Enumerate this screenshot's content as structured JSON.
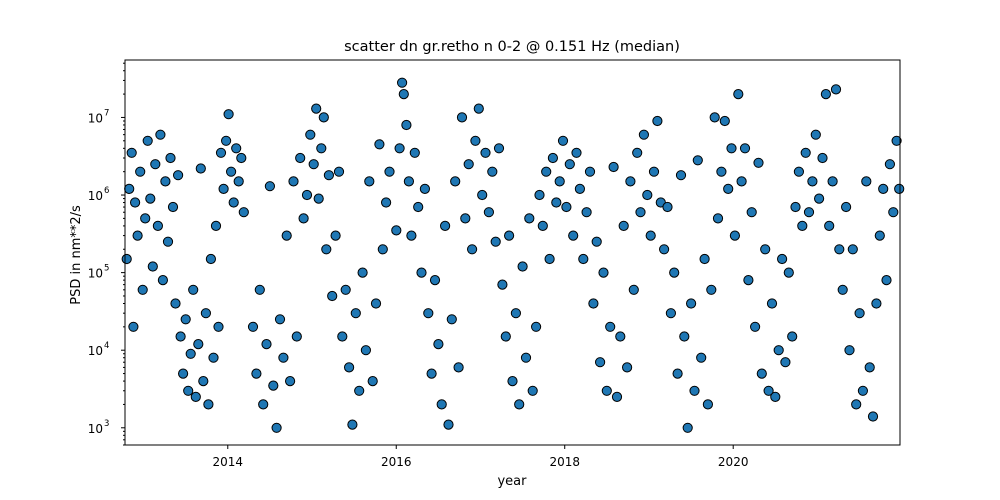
{
  "chart_data": {
    "type": "scatter",
    "title": "scatter dn gr.retho n 0-2 @ 0.151 Hz (median)",
    "xlabel": "year",
    "ylabel": "PSD in nm**2/s",
    "xlim": [
      2012.78,
      2021.98
    ],
    "ylim": [
      600,
      55000000
    ],
    "y_scale": "log",
    "grid": false,
    "marker_color": "#1f77b4",
    "marker_edge_color": "#000000",
    "x_ticks": [
      {
        "value": 2014,
        "label": "2014"
      },
      {
        "value": 2016,
        "label": "2016"
      },
      {
        "value": 2018,
        "label": "2018"
      },
      {
        "value": 2020,
        "label": "2020"
      }
    ],
    "y_ticks": [
      {
        "value": 1000,
        "base": "10",
        "exp": "3"
      },
      {
        "value": 10000,
        "base": "10",
        "exp": "4"
      },
      {
        "value": 100000,
        "base": "10",
        "exp": "5"
      },
      {
        "value": 1000000,
        "base": "10",
        "exp": "6"
      },
      {
        "value": 10000000,
        "base": "10",
        "exp": "7"
      }
    ],
    "points": [
      [
        2012.8,
        150000
      ],
      [
        2012.83,
        1200000
      ],
      [
        2012.86,
        3500000
      ],
      [
        2012.88,
        20000
      ],
      [
        2012.9,
        800000
      ],
      [
        2012.93,
        300000
      ],
      [
        2012.96,
        2000000
      ],
      [
        2012.99,
        60000
      ],
      [
        2013.02,
        500000
      ],
      [
        2013.05,
        5000000
      ],
      [
        2013.08,
        900000
      ],
      [
        2013.11,
        120000
      ],
      [
        2013.14,
        2500000
      ],
      [
        2013.17,
        400000
      ],
      [
        2013.2,
        6000000
      ],
      [
        2013.23,
        80000
      ],
      [
        2013.26,
        1500000
      ],
      [
        2013.29,
        250000
      ],
      [
        2013.32,
        3000000
      ],
      [
        2013.35,
        700000
      ],
      [
        2013.38,
        40000
      ],
      [
        2013.41,
        1800000
      ],
      [
        2013.44,
        15000
      ],
      [
        2013.47,
        5000
      ],
      [
        2013.5,
        25000
      ],
      [
        2013.53,
        3000
      ],
      [
        2013.56,
        9000
      ],
      [
        2013.59,
        60000
      ],
      [
        2013.62,
        2500
      ],
      [
        2013.65,
        12000
      ],
      [
        2013.68,
        2200000
      ],
      [
        2013.71,
        4000
      ],
      [
        2013.74,
        30000
      ],
      [
        2013.77,
        2000
      ],
      [
        2013.8,
        150000
      ],
      [
        2013.83,
        8000
      ],
      [
        2013.86,
        400000
      ],
      [
        2013.89,
        20000
      ],
      [
        2013.92,
        3500000
      ],
      [
        2013.95,
        1200000
      ],
      [
        2013.98,
        5000000
      ],
      [
        2014.01,
        11000000
      ],
      [
        2014.04,
        2000000
      ],
      [
        2014.07,
        800000
      ],
      [
        2014.1,
        4000000
      ],
      [
        2014.13,
        1500000
      ],
      [
        2014.16,
        3000000
      ],
      [
        2014.19,
        600000
      ],
      [
        2014.3,
        20000
      ],
      [
        2014.34,
        5000
      ],
      [
        2014.38,
        60000
      ],
      [
        2014.42,
        2000
      ],
      [
        2014.46,
        12000
      ],
      [
        2014.5,
        1300000
      ],
      [
        2014.54,
        3500
      ],
      [
        2014.58,
        1000
      ],
      [
        2014.62,
        25000
      ],
      [
        2014.66,
        8000
      ],
      [
        2014.7,
        300000
      ],
      [
        2014.74,
        4000
      ],
      [
        2014.78,
        1500000
      ],
      [
        2014.82,
        15000
      ],
      [
        2014.86,
        3000000
      ],
      [
        2014.9,
        500000
      ],
      [
        2014.94,
        1000000
      ],
      [
        2014.98,
        6000000
      ],
      [
        2015.02,
        2500000
      ],
      [
        2015.05,
        13000000
      ],
      [
        2015.08,
        900000
      ],
      [
        2015.11,
        4000000
      ],
      [
        2015.14,
        10000000
      ],
      [
        2015.17,
        200000
      ],
      [
        2015.2,
        1800000
      ],
      [
        2015.24,
        50000
      ],
      [
        2015.28,
        300000
      ],
      [
        2015.32,
        2000000
      ],
      [
        2015.36,
        15000
      ],
      [
        2015.4,
        60000
      ],
      [
        2015.44,
        6000
      ],
      [
        2015.48,
        1100
      ],
      [
        2015.52,
        30000
      ],
      [
        2015.56,
        3000
      ],
      [
        2015.6,
        100000
      ],
      [
        2015.64,
        10000
      ],
      [
        2015.68,
        1500000
      ],
      [
        2015.72,
        4000
      ],
      [
        2015.76,
        40000
      ],
      [
        2015.8,
        4500000
      ],
      [
        2015.84,
        200000
      ],
      [
        2015.88,
        800000
      ],
      [
        2015.92,
        2000000
      ],
      [
        2016.0,
        350000
      ],
      [
        2016.04,
        4000000
      ],
      [
        2016.07,
        28000000
      ],
      [
        2016.09,
        20000000
      ],
      [
        2016.12,
        8000000
      ],
      [
        2016.15,
        1500000
      ],
      [
        2016.18,
        300000
      ],
      [
        2016.22,
        3500000
      ],
      [
        2016.26,
        700000
      ],
      [
        2016.3,
        100000
      ],
      [
        2016.34,
        1200000
      ],
      [
        2016.38,
        30000
      ],
      [
        2016.42,
        5000
      ],
      [
        2016.46,
        80000
      ],
      [
        2016.5,
        12000
      ],
      [
        2016.54,
        2000
      ],
      [
        2016.58,
        400000
      ],
      [
        2016.62,
        1100
      ],
      [
        2016.66,
        25000
      ],
      [
        2016.7,
        1500000
      ],
      [
        2016.74,
        6000
      ],
      [
        2016.78,
        10000000
      ],
      [
        2016.82,
        500000
      ],
      [
        2016.86,
        2500000
      ],
      [
        2016.9,
        200000
      ],
      [
        2016.94,
        5000000
      ],
      [
        2016.98,
        13000000
      ],
      [
        2017.02,
        1000000
      ],
      [
        2017.06,
        3500000
      ],
      [
        2017.1,
        600000
      ],
      [
        2017.14,
        2000000
      ],
      [
        2017.18,
        250000
      ],
      [
        2017.22,
        4000000
      ],
      [
        2017.26,
        70000
      ],
      [
        2017.3,
        15000
      ],
      [
        2017.34,
        300000
      ],
      [
        2017.38,
        4000
      ],
      [
        2017.42,
        30000
      ],
      [
        2017.46,
        2000
      ],
      [
        2017.5,
        120000
      ],
      [
        2017.54,
        8000
      ],
      [
        2017.58,
        500000
      ],
      [
        2017.62,
        3000
      ],
      [
        2017.66,
        20000
      ],
      [
        2017.7,
        1000000
      ],
      [
        2017.74,
        400000
      ],
      [
        2017.78,
        2000000
      ],
      [
        2017.82,
        150000
      ],
      [
        2017.86,
        3000000
      ],
      [
        2017.9,
        800000
      ],
      [
        2017.94,
        1500000
      ],
      [
        2017.98,
        5000000
      ],
      [
        2018.02,
        700000
      ],
      [
        2018.06,
        2500000
      ],
      [
        2018.1,
        300000
      ],
      [
        2018.14,
        3500000
      ],
      [
        2018.18,
        1200000
      ],
      [
        2018.22,
        150000
      ],
      [
        2018.26,
        600000
      ],
      [
        2018.3,
        2000000
      ],
      [
        2018.34,
        40000
      ],
      [
        2018.38,
        250000
      ],
      [
        2018.42,
        7000
      ],
      [
        2018.46,
        100000
      ],
      [
        2018.5,
        3000
      ],
      [
        2018.54,
        20000
      ],
      [
        2018.58,
        2300000
      ],
      [
        2018.62,
        2500
      ],
      [
        2018.66,
        15000
      ],
      [
        2018.7,
        400000
      ],
      [
        2018.74,
        6000
      ],
      [
        2018.78,
        1500000
      ],
      [
        2018.82,
        60000
      ],
      [
        2018.86,
        3500000
      ],
      [
        2018.9,
        600000
      ],
      [
        2018.94,
        6000000
      ],
      [
        2018.98,
        1000000
      ],
      [
        2019.02,
        300000
      ],
      [
        2019.06,
        2000000
      ],
      [
        2019.1,
        9000000
      ],
      [
        2019.14,
        800000
      ],
      [
        2019.18,
        200000
      ],
      [
        2019.22,
        700000
      ],
      [
        2019.26,
        30000
      ],
      [
        2019.3,
        100000
      ],
      [
        2019.34,
        5000
      ],
      [
        2019.38,
        1800000
      ],
      [
        2019.42,
        15000
      ],
      [
        2019.46,
        1000
      ],
      [
        2019.5,
        40000
      ],
      [
        2019.54,
        3000
      ],
      [
        2019.58,
        2800000
      ],
      [
        2019.62,
        8000
      ],
      [
        2019.66,
        150000
      ],
      [
        2019.7,
        2000
      ],
      [
        2019.74,
        60000
      ],
      [
        2019.78,
        10000000
      ],
      [
        2019.82,
        500000
      ],
      [
        2019.86,
        2000000
      ],
      [
        2019.9,
        9000000
      ],
      [
        2019.94,
        1200000
      ],
      [
        2019.98,
        4000000
      ],
      [
        2020.02,
        300000
      ],
      [
        2020.06,
        20000000
      ],
      [
        2020.1,
        1500000
      ],
      [
        2020.14,
        4000000
      ],
      [
        2020.18,
        80000
      ],
      [
        2020.22,
        600000
      ],
      [
        2020.26,
        20000
      ],
      [
        2020.3,
        2600000
      ],
      [
        2020.34,
        5000
      ],
      [
        2020.38,
        200000
      ],
      [
        2020.42,
        3000
      ],
      [
        2020.46,
        40000
      ],
      [
        2020.5,
        2500
      ],
      [
        2020.54,
        10000
      ],
      [
        2020.58,
        150000
      ],
      [
        2020.62,
        7000
      ],
      [
        2020.66,
        100000
      ],
      [
        2020.7,
        15000
      ],
      [
        2020.74,
        700000
      ],
      [
        2020.78,
        2000000
      ],
      [
        2020.82,
        400000
      ],
      [
        2020.86,
        3500000
      ],
      [
        2020.9,
        600000
      ],
      [
        2020.94,
        1500000
      ],
      [
        2020.98,
        6000000
      ],
      [
        2021.02,
        900000
      ],
      [
        2021.06,
        3000000
      ],
      [
        2021.1,
        20000000
      ],
      [
        2021.14,
        400000
      ],
      [
        2021.18,
        1500000
      ],
      [
        2021.22,
        23000000
      ],
      [
        2021.26,
        200000
      ],
      [
        2021.3,
        60000
      ],
      [
        2021.34,
        700000
      ],
      [
        2021.38,
        10000
      ],
      [
        2021.42,
        200000
      ],
      [
        2021.46,
        2000
      ],
      [
        2021.5,
        30000
      ],
      [
        2021.54,
        3000
      ],
      [
        2021.58,
        1500000
      ],
      [
        2021.62,
        6000
      ],
      [
        2021.66,
        1400
      ],
      [
        2021.7,
        40000
      ],
      [
        2021.74,
        300000
      ],
      [
        2021.78,
        1200000
      ],
      [
        2021.82,
        80000
      ],
      [
        2021.86,
        2500000
      ],
      [
        2021.9,
        600000
      ],
      [
        2021.94,
        5000000
      ],
      [
        2021.97,
        1200000
      ]
    ]
  }
}
